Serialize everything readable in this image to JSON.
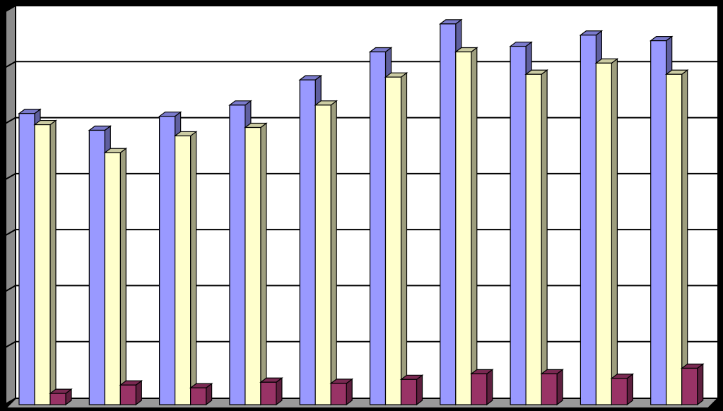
{
  "chart_data": {
    "type": "bar",
    "title": "",
    "xlabel": "",
    "ylabel": "",
    "categories": [
      "",
      "",
      "",
      "",
      "",
      "",
      "",
      "",
      "",
      ""
    ],
    "ylim": [
      0,
      7
    ],
    "grid": true,
    "legend": "none",
    "series": [
      {
        "color": "#9999ff",
        "values": [
          5.2,
          4.9,
          5.15,
          5.35,
          5.8,
          6.3,
          6.8,
          6.4,
          6.6,
          6.5
        ]
      },
      {
        "color": "#ffffcc",
        "values": [
          5.0,
          4.5,
          4.8,
          4.95,
          5.35,
          5.85,
          6.3,
          5.9,
          6.1,
          5.9
        ]
      },
      {
        "color": "#993366",
        "values": [
          0.2,
          0.35,
          0.3,
          0.4,
          0.38,
          0.45,
          0.55,
          0.55,
          0.47,
          0.65
        ]
      }
    ]
  }
}
